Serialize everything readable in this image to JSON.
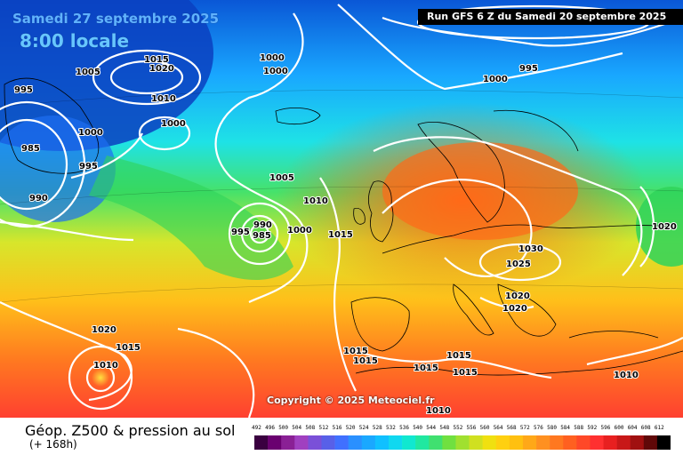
{
  "header": {
    "date_title": "Samedi 27 septembre 2025",
    "time_title": "8:00 locale",
    "run_info": "Run GFS 6 Z du Samedi 20 septembre 2025"
  },
  "map": {
    "copyright": "Copyright © 2025 Meteociel.fr",
    "pressure_labels": [
      "995",
      "1005",
      "1015",
      "1020",
      "1010",
      "1000",
      "1000",
      "985",
      "995",
      "990",
      "1000",
      "1000",
      "995",
      "1000",
      "1005",
      "1010",
      "995",
      "990",
      "985",
      "1000",
      "1015",
      "1030",
      "1025",
      "1020",
      "1020",
      "1020",
      "1015",
      "1010",
      "1015",
      "1015",
      "1015",
      "1015",
      "1015",
      "1010",
      "1010",
      "1020"
    ]
  },
  "footer": {
    "parameter": "Géop. Z500 & pression au sol",
    "horizon": "(+ 168h)",
    "legend_values": [
      "492",
      "496",
      "500",
      "504",
      "508",
      "512",
      "516",
      "520",
      "524",
      "528",
      "532",
      "536",
      "540",
      "544",
      "548",
      "552",
      "556",
      "560",
      "564",
      "568",
      "572",
      "576",
      "580",
      "584",
      "588",
      "592",
      "596",
      "600",
      "604",
      "608",
      "612"
    ]
  }
}
